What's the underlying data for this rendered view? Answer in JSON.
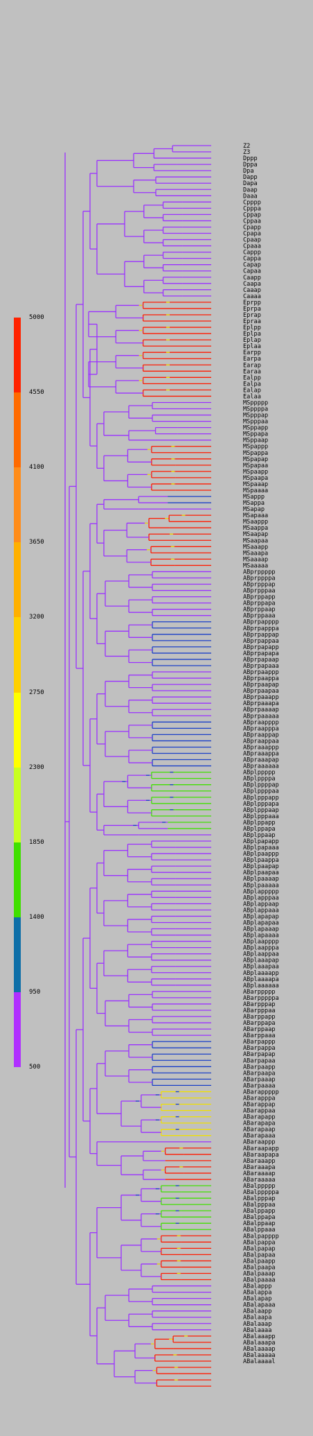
{
  "legend": {
    "ticks": [
      "5000",
      "4550",
      "4100",
      "3650",
      "3200",
      "2750",
      "2300",
      "1850",
      "1400",
      "950",
      "500"
    ],
    "colors": [
      "#ff2200",
      "#ff6a00",
      "#ff8c1a",
      "#ffb000",
      "#ffd000",
      "#ffff00",
      "#c8ff20",
      "#40e000",
      "#0e6fa8",
      "#b030ff"
    ]
  },
  "tree": {
    "branch_colors": {
      "early": "#9a30ff",
      "blue": "#1a3fc8",
      "green": "#40e000",
      "yellow": "#f0e000",
      "orange": "#ff8c1a",
      "red": "#ff1a00"
    }
  },
  "leaves": [
    "Z2",
    "Z3",
    "Dppp",
    "Dppa",
    "Dpa",
    "Dapp",
    "Dapa",
    "Daap",
    "Daaa",
    "Cpppp",
    "Cpppa",
    "Cppap",
    "Cppaa",
    "Cpapp",
    "Cpapa",
    "Cpaap",
    "Cpaaa",
    "Cappp",
    "Cappa",
    "Capap",
    "Capaa",
    "Caapp",
    "Caapa",
    "Caaap",
    "Caaaa",
    "Eprpp",
    "Eprpa",
    "Eprap",
    "Epraa",
    "Eplpp",
    "Eplpa",
    "Eplap",
    "Eplaa",
    "Earpp",
    "Earpa",
    "Earap",
    "Earaa",
    "Ealpp",
    "Ealpa",
    "Ealap",
    "Ealaa",
    "MSppppp",
    "MSppppa",
    "MSpppap",
    "MSpppaa",
    "MSppapp",
    "MSppapa",
    "MSppaap",
    "MSpappp",
    "MSpappa",
    "MSpapap",
    "MSpapaa",
    "MSpaapp",
    "MSpaapa",
    "MSpaaap",
    "MSpaaaa",
    "MSappp",
    "MSappa",
    "MSapap",
    "MSapaaa",
    "MSaappp",
    "MSaappa",
    "MSaapap",
    "MSaapaa",
    "MSaaapp",
    "MSaaapa",
    "MSaaaap",
    "MSaaaaa",
    "ABprppppp",
    "ABprppppa",
    "ABprpppap",
    "ABprpppaa",
    "ABprppapp",
    "ABprppapa",
    "ABprppaap",
    "ABprppaaa",
    "ABprpapppp",
    "ABprpapppa",
    "ABprpappap",
    "ABprpappaa",
    "ABprpapapp",
    "ABprpapapa",
    "ABprpapaap",
    "ABprpapaaa",
    "ABprpaappp",
    "ABprpaappa",
    "ABprpaapap",
    "ABprpaapaa",
    "ABprpaaapp",
    "ABprpaaapa",
    "ABprpaaaap",
    "ABprpaaaaa",
    "ABpraapppp",
    "ABpraapppa",
    "ABpraappap",
    "ABpraappaa",
    "ABpraaappp",
    "ABpraaappa",
    "ABpraaapap",
    "ABpraaaaaa",
    "ABplppppp",
    "ABplppppa",
    "ABplppppap",
    "ABplppppaa",
    "ABplpppapp",
    "ABplpppapa",
    "ABplpppaap",
    "ABplpppaaa",
    "ABplppapp",
    "ABplppapa",
    "ABplppaap",
    "ABplpapapp",
    "ABplpapaaa",
    "ABplpaappp",
    "ABplpaappa",
    "ABplpaapap",
    "ABplpaapaa",
    "ABplpaaaap",
    "ABplpaaaaa",
    "ABplappppp",
    "ABplapppaa",
    "ABplappaap",
    "ABplappaaa",
    "ABplapapap",
    "ABplapapaa",
    "ABplapaaap",
    "ABplapaaaa",
    "ABplaapppp",
    "ABplaapppa",
    "ABplaappaa",
    "ABplaaapap",
    "ABplaaapaa",
    "ABplaaaapp",
    "ABplaaaapa",
    "ABplaaaaaa",
    "ABarppppp",
    "ABarpppppa",
    "ABarpppap",
    "ABarpppaa",
    "ABarppapp",
    "ABarppapa",
    "ABarppaap",
    "ABarppaaa",
    "ABarpappp",
    "ABarpappa",
    "ABarpapap",
    "ABarpapaa",
    "ABarpaapp",
    "ABarpaapa",
    "ABarpaaap",
    "ABarpaaaa",
    "ABarappppp",
    "ABarapppa",
    "ABarappap",
    "ABarappaa",
    "ABarapapp",
    "ABarapapa",
    "ABarapaap",
    "ABarapaaa",
    "ABaraappp",
    "ABaraapapp",
    "ABaraapapa",
    "ABaraaapp",
    "ABaraaapa",
    "ABaraaaap",
    "ABaraaaaa",
    "ABalppppp",
    "ABalpppppa",
    "ABalpppap",
    "ABalpppaa",
    "ABalppapp",
    "ABalppapa",
    "ABalppaap",
    "ABalppaaa",
    "ABalpapppp",
    "ABalpappa",
    "ABalpapap",
    "ABalpapaa",
    "ABalpaapp",
    "ABalpaapa",
    "ABalpaaap",
    "ABalpaaaa",
    "ABalappp",
    "ABalappa",
    "ABalapap",
    "ABalapaaa",
    "ABalaapp",
    "ABalaapa",
    "ABalaaap",
    "ABalaaaa",
    "ABalaaapp",
    "ABalaaapa",
    "ABalaaaap",
    "ABalaaaaa",
    "ABalaaaal"
  ]
}
